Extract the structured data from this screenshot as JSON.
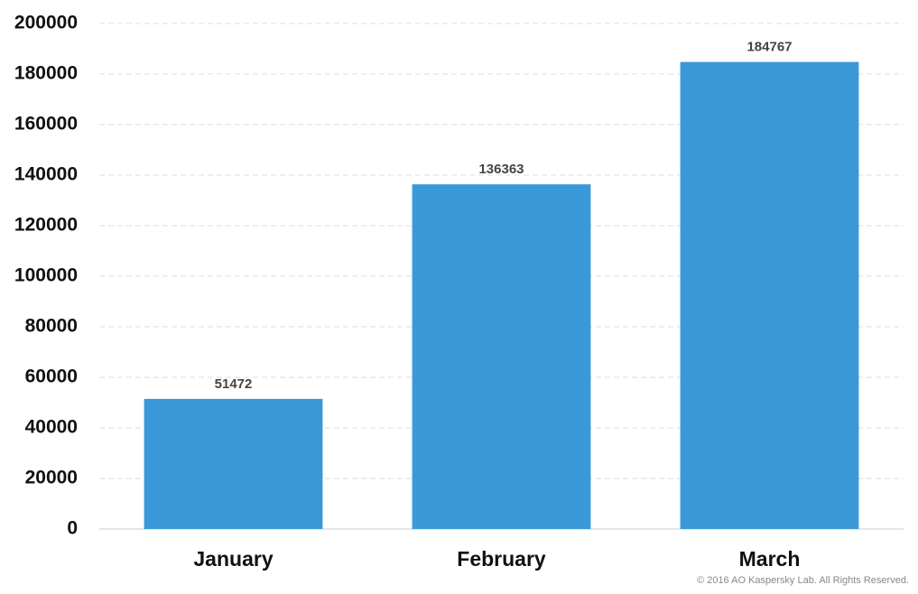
{
  "chart_data": {
    "type": "bar",
    "categories": [
      "January",
      "February",
      "March"
    ],
    "values": [
      51472,
      136363,
      184767
    ],
    "color": "#3a99d8",
    "ylim": [
      0,
      200000
    ],
    "yticks": [
      0,
      20000,
      40000,
      60000,
      80000,
      100000,
      120000,
      140000,
      160000,
      180000,
      200000
    ],
    "grid": true,
    "note": "© 2016 AO Kaspersky Lab. All Rights Reserved."
  }
}
